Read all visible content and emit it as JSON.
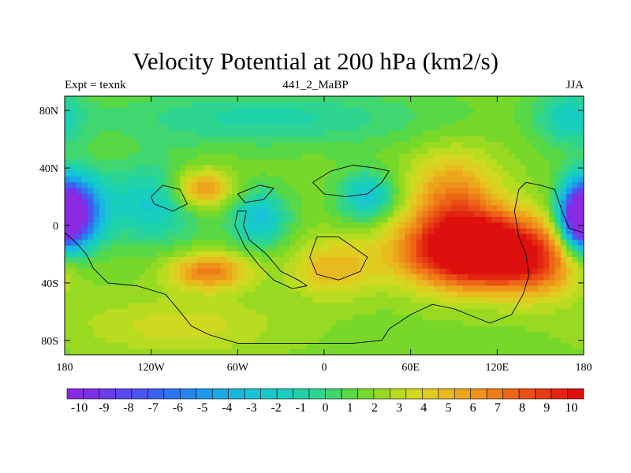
{
  "chart_data": {
    "type": "heatmap",
    "title": "Velocity Potential at 200 hPa (km2/s)",
    "left_label": "Expt = texnk",
    "center_label": "441_2_MaBP",
    "right_label": "JJA",
    "x_ticks": [
      {
        "value": -180,
        "label": "180"
      },
      {
        "value": -120,
        "label": "120W"
      },
      {
        "value": -60,
        "label": "60W"
      },
      {
        "value": 0,
        "label": "0"
      },
      {
        "value": 60,
        "label": "60E"
      },
      {
        "value": 120,
        "label": "120E"
      },
      {
        "value": 180,
        "label": "180"
      }
    ],
    "y_ticks": [
      {
        "value": 80,
        "label": "80N"
      },
      {
        "value": 40,
        "label": "40N"
      },
      {
        "value": 0,
        "label": "0"
      },
      {
        "value": -40,
        "label": "40S"
      },
      {
        "value": -80,
        "label": "80S"
      }
    ],
    "xlim": [
      -180,
      180
    ],
    "ylim": [
      -90,
      90
    ],
    "colorbar": {
      "labels": [
        "-10",
        "-9",
        "-8",
        "-7",
        "-6",
        "-5",
        "-4",
        "-3",
        "-2",
        "-1",
        "0",
        "1",
        "2",
        "3",
        "4",
        "5",
        "6",
        "7",
        "8",
        "9",
        "10"
      ],
      "min": -10.5,
      "max": 10.5,
      "step": 0.5,
      "colors": [
        "#8a2be2",
        "#7a30e8",
        "#6a3ded",
        "#5a4af0",
        "#4a55f2",
        "#3a62f2",
        "#2e74f0",
        "#2585ee",
        "#1f98ea",
        "#1aa8e6",
        "#18b6e0",
        "#18c2d8",
        "#18c9cc",
        "#18cebc",
        "#1fd2a8",
        "#2ed590",
        "#40d670",
        "#58d845",
        "#78d82a",
        "#98da22",
        "#b8dc20",
        "#d0d820",
        "#e0cc20",
        "#e8ba1e",
        "#eca61c",
        "#ee921a",
        "#ee7c18",
        "#ec6616",
        "#ea5014",
        "#e63a12",
        "#e22410",
        "#de100e"
      ]
    },
    "field_features": [
      {
        "lon": -175,
        "lat": 8,
        "amplitude": -9.5,
        "sigma_lon": 14,
        "sigma_lat": 18
      },
      {
        "lon": 178,
        "lat": 5,
        "amplitude": -6.5,
        "sigma_lon": 9,
        "sigma_lat": 14
      },
      {
        "lon": 110,
        "lat": -18,
        "amplitude": 9.5,
        "sigma_lon": 38,
        "sigma_lat": 18
      },
      {
        "lon": 90,
        "lat": 20,
        "amplitude": 3.5,
        "sigma_lon": 22,
        "sigma_lat": 22
      },
      {
        "lon": 150,
        "lat": -35,
        "amplitude": 1.5,
        "sigma_lon": 18,
        "sigma_lat": 14
      },
      {
        "lon": -85,
        "lat": 25,
        "amplitude": 4,
        "sigma_lon": 15,
        "sigma_lat": 10
      },
      {
        "lon": -80,
        "lat": -32,
        "amplitude": 4,
        "sigma_lon": 20,
        "sigma_lat": 9
      },
      {
        "lon": 5,
        "lat": -30,
        "amplitude": 2.5,
        "sigma_lon": 20,
        "sigma_lat": 14
      },
      {
        "lon": -45,
        "lat": 5,
        "amplitude": -3.5,
        "sigma_lon": 14,
        "sigma_lat": 14
      },
      {
        "lon": 30,
        "lat": 20,
        "amplitude": -3.5,
        "sigma_lon": 14,
        "sigma_lat": 12
      },
      {
        "lon": -120,
        "lat": 15,
        "amplitude": -3,
        "sigma_lon": 25,
        "sigma_lat": 20
      },
      {
        "lon": -40,
        "lat": 75,
        "amplitude": -2,
        "sigma_lon": 80,
        "sigma_lat": 14
      },
      {
        "lon": 170,
        "lat": 75,
        "amplitude": -2.5,
        "sigma_lon": 16,
        "sigma_lat": 14
      },
      {
        "lon": -100,
        "lat": -70,
        "amplitude": 1.5,
        "sigma_lon": 50,
        "sigma_lat": 14
      }
    ],
    "coastlines": [
      [
        [
          -180,
          -5
        ],
        [
          -172,
          -12
        ],
        [
          -165,
          -20
        ],
        [
          -160,
          -30
        ],
        [
          -150,
          -40
        ],
        [
          -130,
          -42
        ],
        [
          -110,
          -48
        ],
        [
          -100,
          -60
        ],
        [
          -92,
          -70
        ],
        [
          -80,
          -76
        ],
        [
          -60,
          -82
        ],
        [
          -20,
          -82
        ],
        [
          20,
          -82
        ],
        [
          40,
          -80
        ],
        [
          45,
          -72
        ],
        [
          60,
          -62
        ],
        [
          75,
          -55
        ],
        [
          90,
          -58
        ],
        [
          100,
          -62
        ],
        [
          115,
          -68
        ],
        [
          130,
          -62
        ],
        [
          138,
          -48
        ],
        [
          142,
          -35
        ],
        [
          140,
          -20
        ],
        [
          135,
          -8
        ],
        [
          132,
          10
        ],
        [
          135,
          25
        ],
        [
          140,
          30
        ],
        [
          150,
          28
        ],
        [
          160,
          25
        ],
        [
          165,
          10
        ],
        [
          170,
          -2
        ],
        [
          180,
          -5
        ]
      ],
      [
        [
          -54,
          10
        ],
        [
          -56,
          0
        ],
        [
          -52,
          -10
        ],
        [
          -40,
          -20
        ],
        [
          -30,
          -32
        ],
        [
          -18,
          -38
        ],
        [
          -12,
          -42
        ],
        [
          -22,
          -44
        ],
        [
          -35,
          -38
        ],
        [
          -45,
          -28
        ],
        [
          -55,
          -15
        ],
        [
          -62,
          0
        ],
        [
          -60,
          10
        ],
        [
          -54,
          10
        ]
      ],
      [
        [
          -5,
          -8
        ],
        [
          10,
          -8
        ],
        [
          20,
          -15
        ],
        [
          30,
          -22
        ],
        [
          25,
          -32
        ],
        [
          10,
          -38
        ],
        [
          -5,
          -34
        ],
        [
          -10,
          -22
        ],
        [
          -5,
          -8
        ]
      ],
      [
        [
          -8,
          30
        ],
        [
          5,
          38
        ],
        [
          20,
          42
        ],
        [
          35,
          40
        ],
        [
          45,
          38
        ],
        [
          40,
          30
        ],
        [
          30,
          22
        ],
        [
          15,
          20
        ],
        [
          0,
          22
        ],
        [
          -8,
          30
        ]
      ],
      [
        [
          -120,
          20
        ],
        [
          -112,
          28
        ],
        [
          -100,
          25
        ],
        [
          -95,
          15
        ],
        [
          -105,
          10
        ],
        [
          -118,
          15
        ],
        [
          -120,
          20
        ]
      ],
      [
        [
          -60,
          22
        ],
        [
          -45,
          28
        ],
        [
          -35,
          26
        ],
        [
          -42,
          18
        ],
        [
          -55,
          16
        ],
        [
          -60,
          22
        ]
      ]
    ]
  }
}
